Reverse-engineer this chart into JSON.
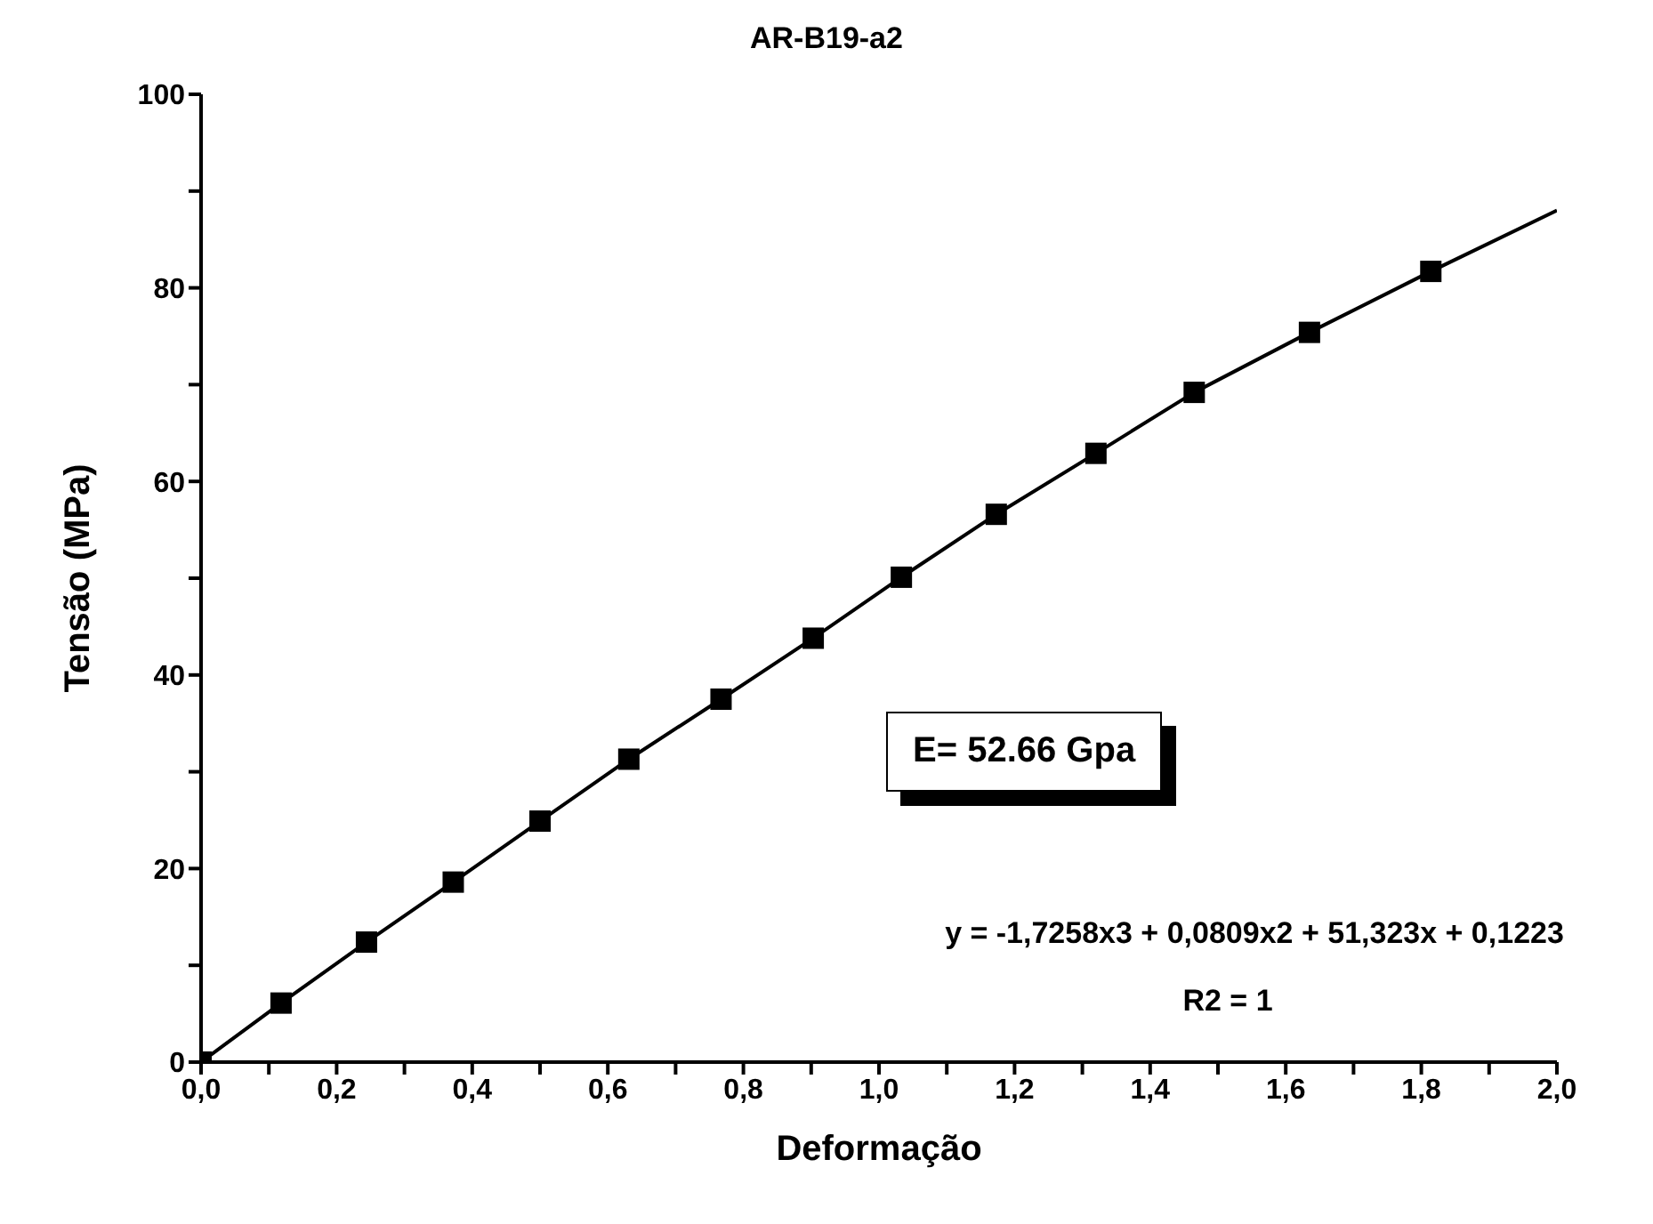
{
  "chart_data": {
    "type": "scatter",
    "title": "AR-B19-a2",
    "xlabel": "Deformação",
    "ylabel": "Tensão (MPa)",
    "series": [
      {
        "color": "#000000",
        "marker": "square",
        "x": [
          0,
          0.118,
          0.244,
          0.372,
          0.5,
          0.631,
          0.767,
          0.903,
          1.033,
          1.173,
          1.32,
          1.465,
          1.635,
          1.814
        ],
        "values": [
          0,
          6.1,
          12.4,
          18.6,
          24.9,
          31.3,
          37.5,
          43.8,
          50.1,
          56.6,
          62.9,
          69.2,
          75.4,
          81.7
        ]
      },
      {
        "type": "line",
        "color": "#000000",
        "marker": "none",
        "line_style": "solid",
        "x": [
          0,
          0.118,
          0.244,
          0.372,
          0.5,
          0.631,
          0.767,
          0.903,
          1.033,
          1.173,
          1.32,
          1.465,
          1.635,
          1.814,
          2.0
        ],
        "values": [
          0,
          6.1,
          12.4,
          18.6,
          24.9,
          31.3,
          37.5,
          43.8,
          50.1,
          56.6,
          62.9,
          69.2,
          75.4,
          81.7,
          88
        ]
      }
    ],
    "xlim": [
      0,
      2
    ],
    "xticks": [
      {
        "value": 0,
        "label": "0,0"
      },
      {
        "value": 0.1,
        "label": null
      },
      {
        "value": 0.2,
        "label": "0,2"
      },
      {
        "value": 0.3,
        "label": null
      },
      {
        "value": 0.4,
        "label": "0,4"
      },
      {
        "value": 0.5,
        "label": null
      },
      {
        "value": 0.6,
        "label": "0,6"
      },
      {
        "value": 0.7,
        "label": null
      },
      {
        "value": 0.8,
        "label": "0,8"
      },
      {
        "value": 0.9,
        "label": null
      },
      {
        "value": 1.0,
        "label": "1,0"
      },
      {
        "value": 1.1,
        "label": null
      },
      {
        "value": 1.2,
        "label": "1,2"
      },
      {
        "value": 1.3,
        "label": null
      },
      {
        "value": 1.4,
        "label": "1,4"
      },
      {
        "value": 1.5,
        "label": null
      },
      {
        "value": 1.6,
        "label": "1,6"
      },
      {
        "value": 1.7,
        "label": null
      },
      {
        "value": 1.8,
        "label": "1,8"
      },
      {
        "value": 1.9,
        "label": null
      },
      {
        "value": 2.0,
        "label": "2,0"
      }
    ],
    "ylim": [
      0,
      100
    ],
    "yticks": [
      0,
      {
        "value": 10,
        "label": null
      },
      20,
      {
        "value": 30,
        "label": null
      },
      40,
      {
        "value": 50,
        "label": null
      },
      60,
      {
        "value": 70,
        "label": null
      },
      80,
      {
        "value": 90,
        "label": null
      },
      100
    ],
    "grid": false,
    "legend": false,
    "annotations": [
      "E= 52.66 Gpa",
      "y = -1,7258x3 + 0,0809x2 + 51,323x + 0,1223",
      "R2 = 1"
    ]
  }
}
